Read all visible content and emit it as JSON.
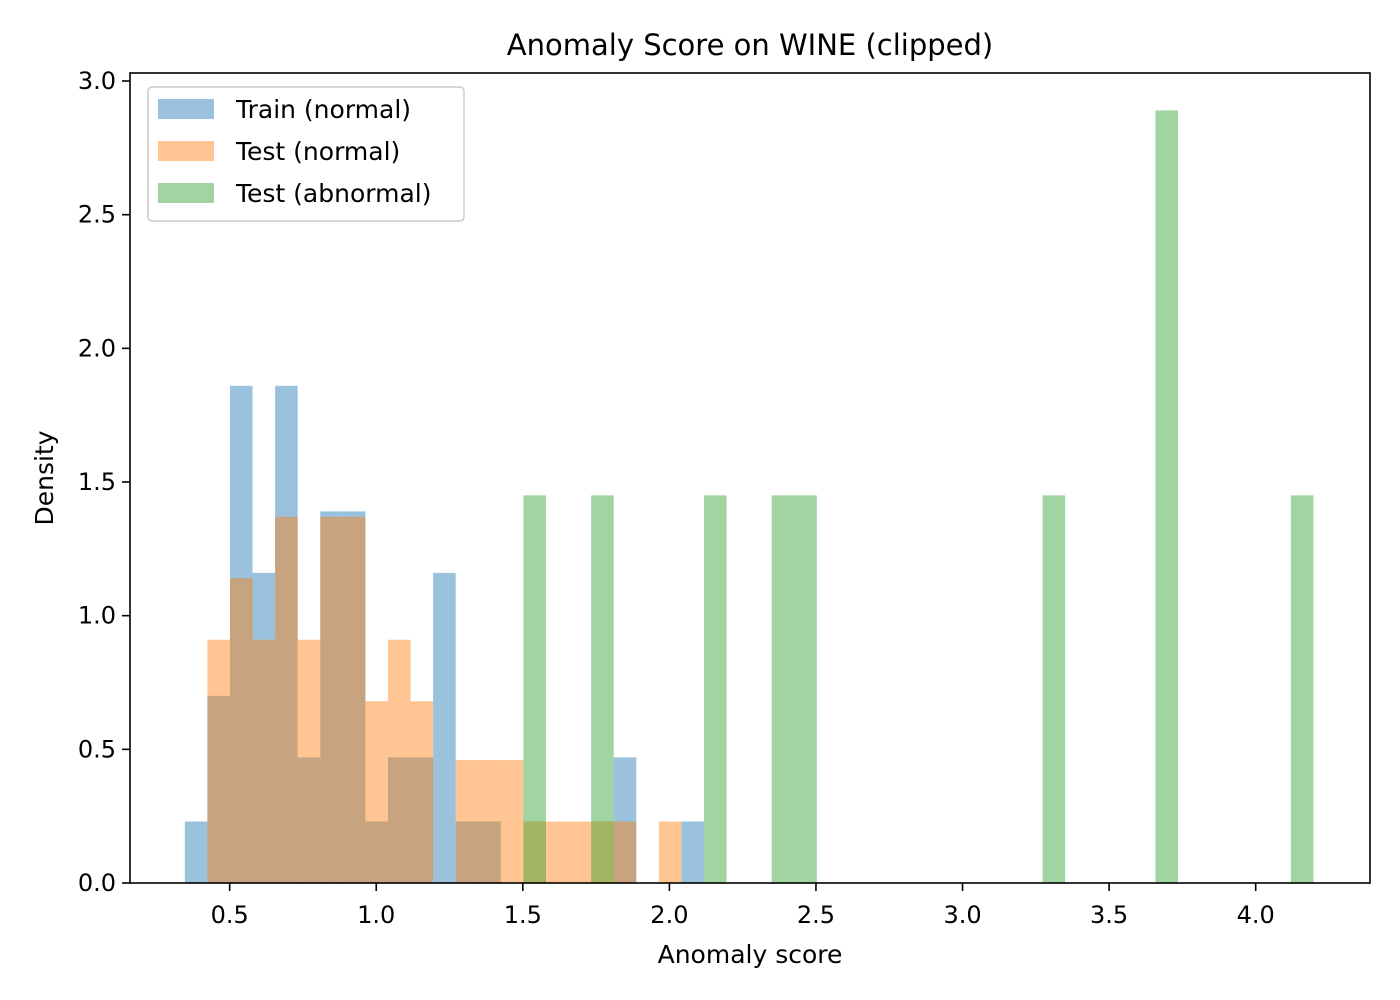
{
  "chart_data": {
    "type": "bar",
    "title": "Anomaly Score on WINE (clipped)",
    "xlabel": "Anomaly score",
    "ylabel": "Density",
    "xlim": [
      0.16,
      4.39
    ],
    "ylim": [
      0,
      3.03
    ],
    "x_ticks": [
      "0.5",
      "1.0",
      "1.5",
      "2.0",
      "2.5",
      "3.0",
      "3.5",
      "4.0"
    ],
    "x_tick_values": [
      0.5,
      1.0,
      1.5,
      2.0,
      2.5,
      3.0,
      3.5,
      4.0
    ],
    "y_ticks": [
      "0.0",
      "0.5",
      "1.0",
      "1.5",
      "2.0",
      "2.5",
      "3.0"
    ],
    "y_tick_values": [
      0,
      0.5,
      1.0,
      1.5,
      2.0,
      2.5,
      3.0
    ],
    "grid": false,
    "legend_position": "top-left",
    "series": [
      {
        "name": "Train (normal)",
        "color": "#1f77b4",
        "opacity": 0.45,
        "bin_width": 0.077,
        "bins": [
          {
            "x": 0.347,
            "y": 0.23
          },
          {
            "x": 0.424,
            "y": 0.7
          },
          {
            "x": 0.501,
            "y": 1.86
          },
          {
            "x": 0.578,
            "y": 1.16
          },
          {
            "x": 0.655,
            "y": 1.86
          },
          {
            "x": 0.732,
            "y": 0.47
          },
          {
            "x": 0.809,
            "y": 1.39
          },
          {
            "x": 0.886,
            "y": 1.39
          },
          {
            "x": 0.963,
            "y": 0.23
          },
          {
            "x": 1.04,
            "y": 0.47
          },
          {
            "x": 1.117,
            "y": 0.47
          },
          {
            "x": 1.194,
            "y": 1.16
          },
          {
            "x": 1.271,
            "y": 0.23
          },
          {
            "x": 1.348,
            "y": 0.23
          },
          {
            "x": 1.81,
            "y": 0.47
          },
          {
            "x": 2.041,
            "y": 0.23
          }
        ]
      },
      {
        "name": "Test (normal)",
        "color": "#ff7f0e",
        "opacity": 0.45,
        "bin_width": 0.077,
        "bins": [
          {
            "x": 0.424,
            "y": 0.91
          },
          {
            "x": 0.501,
            "y": 1.14
          },
          {
            "x": 0.578,
            "y": 0.91
          },
          {
            "x": 0.655,
            "y": 1.37
          },
          {
            "x": 0.732,
            "y": 0.91
          },
          {
            "x": 0.809,
            "y": 1.37
          },
          {
            "x": 0.886,
            "y": 1.37
          },
          {
            "x": 0.963,
            "y": 0.68
          },
          {
            "x": 1.04,
            "y": 0.91
          },
          {
            "x": 1.117,
            "y": 0.68
          },
          {
            "x": 1.271,
            "y": 0.46
          },
          {
            "x": 1.348,
            "y": 0.46
          },
          {
            "x": 1.425,
            "y": 0.46
          },
          {
            "x": 1.502,
            "y": 0.23
          },
          {
            "x": 1.579,
            "y": 0.23
          },
          {
            "x": 1.656,
            "y": 0.23
          },
          {
            "x": 1.733,
            "y": 0.23
          },
          {
            "x": 1.81,
            "y": 0.23
          },
          {
            "x": 1.964,
            "y": 0.23
          }
        ]
      },
      {
        "name": "Test (abnormal)",
        "color": "#2ca02c",
        "opacity": 0.45,
        "bin_width": 0.077,
        "bins": [
          {
            "x": 1.502,
            "y": 1.45
          },
          {
            "x": 1.733,
            "y": 1.45
          },
          {
            "x": 2.118,
            "y": 1.45
          },
          {
            "x": 2.349,
            "y": 1.45
          },
          {
            "x": 2.426,
            "y": 1.45
          },
          {
            "x": 3.273,
            "y": 1.45
          },
          {
            "x": 3.658,
            "y": 2.89
          },
          {
            "x": 4.12,
            "y": 1.45
          }
        ]
      }
    ]
  }
}
